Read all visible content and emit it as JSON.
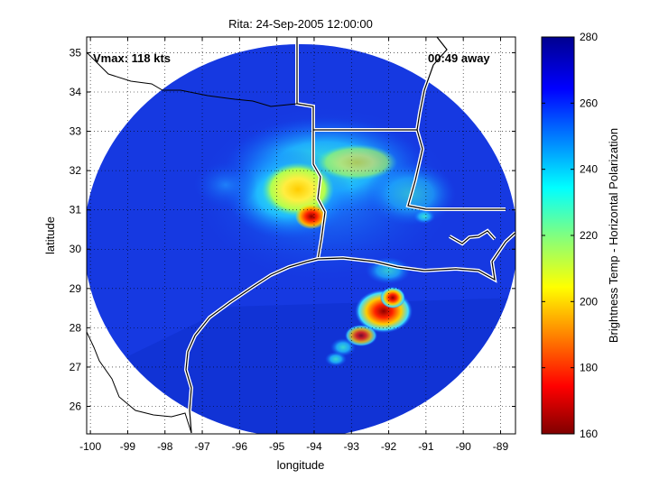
{
  "chart_data": {
    "type": "heatmap",
    "title": "Rita: 24-Sep-2005 12:00:00",
    "xlabel": "longitude",
    "ylabel": "latitude",
    "xlim": [
      -100.1,
      -88.6
    ],
    "ylim": [
      25.3,
      35.4
    ],
    "xticks": [
      -100,
      -99,
      -98,
      -97,
      -96,
      -95,
      -94,
      -93,
      -92,
      -91,
      -90,
      -89
    ],
    "yticks": [
      26,
      27,
      28,
      29,
      30,
      31,
      32,
      33,
      34,
      35
    ],
    "grid": true,
    "annotations": {
      "vmax": "Vmax: 118 kts",
      "away": "00:49 away"
    },
    "colorbar": {
      "label": "Brightness Temp - Horizontal Polarization",
      "min": 160,
      "max": 280,
      "ticks": [
        160,
        180,
        200,
        220,
        240,
        260,
        280
      ],
      "colormap": "jet"
    },
    "swath": {
      "center_lon": -94.4,
      "center_lat": 29.9,
      "extent": "circular footprint"
    },
    "features": [
      {
        "name": "eyewall convection",
        "lon": -94.05,
        "lat": 30.75,
        "temp": 180
      },
      {
        "name": "inland rain shield",
        "lon": -94.6,
        "lat": 31.2,
        "temp": 205
      },
      {
        "name": "northern band",
        "lon": -93.2,
        "lat": 32.2,
        "temp": 235
      },
      {
        "name": "outer rainband",
        "lon": -92.1,
        "lat": 28.45,
        "temp": 165
      },
      {
        "name": "outer rainband tail",
        "lon": -92.7,
        "lat": 27.5,
        "temp": 225
      },
      {
        "name": "open ocean background",
        "lon": -93.5,
        "lat": 27.2,
        "temp": 270
      }
    ]
  }
}
